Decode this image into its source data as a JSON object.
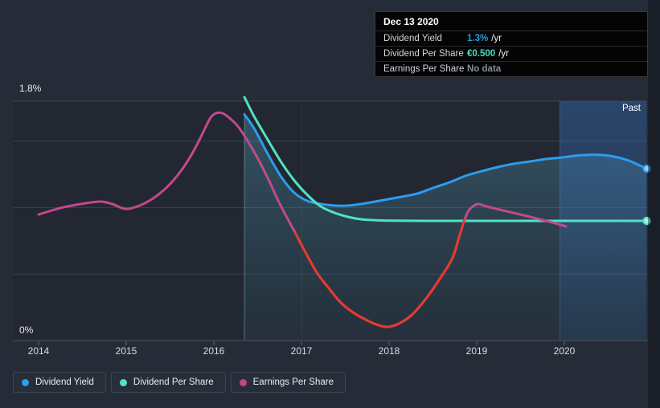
{
  "tooltip": {
    "date": "Dec 13 2020",
    "rows": [
      {
        "label": "Dividend Yield",
        "value": "1.3%",
        "suffix": "/yr",
        "value_color": "#1f9cf0"
      },
      {
        "label": "Dividend Per Share",
        "value": "€0.500",
        "suffix": "/yr",
        "value_color": "#45e0c0"
      },
      {
        "label": "Earnings Per Share",
        "value": "No data",
        "suffix": "",
        "value_color": "#878d96"
      }
    ]
  },
  "legend": {
    "items": [
      {
        "label": "Dividend Yield",
        "color": "#2d9cee"
      },
      {
        "label": "Dividend Per Share",
        "color": "#4fe3c5"
      },
      {
        "label": "Earnings Per Share",
        "color": "#c9418c"
      }
    ]
  },
  "chart_data": {
    "type": "line",
    "title": "",
    "x_tick_labels": [
      "2014",
      "2015",
      "2016",
      "2017",
      "2018",
      "2019",
      "2020"
    ],
    "x_ticks": [
      2014,
      2015,
      2016,
      2017,
      2018,
      2019,
      2020
    ],
    "x_range": [
      2013.7,
      2020.94
    ],
    "y_axis": {
      "top_label": "1.8%",
      "bottom_label": "0%",
      "min": 0,
      "max": 1.8,
      "gridline_values": [
        0.5,
        1.0,
        1.5,
        1.8
      ],
      "minor_vertical_ticks": [
        2017
      ]
    },
    "past_region": {
      "label": "Past",
      "start": 2019.95,
      "end": 2020.94
    },
    "series": [
      {
        "name": "Dividend Yield",
        "color": "#2d9cee",
        "marker_fill": "#8ecdf7",
        "area_fill": true,
        "end_marker": true,
        "points": [
          [
            2016.35,
            1.7
          ],
          [
            2016.46,
            1.595
          ],
          [
            2016.61,
            1.41
          ],
          [
            2016.77,
            1.23
          ],
          [
            2016.92,
            1.11
          ],
          [
            2017.07,
            1.05
          ],
          [
            2017.22,
            1.027
          ],
          [
            2017.38,
            1.015
          ],
          [
            2017.53,
            1.015
          ],
          [
            2017.68,
            1.027
          ],
          [
            2017.84,
            1.045
          ],
          [
            2017.99,
            1.063
          ],
          [
            2018.14,
            1.081
          ],
          [
            2018.32,
            1.105
          ],
          [
            2018.51,
            1.15
          ],
          [
            2018.69,
            1.19
          ],
          [
            2018.87,
            1.238
          ],
          [
            2019.06,
            1.274
          ],
          [
            2019.24,
            1.305
          ],
          [
            2019.42,
            1.329
          ],
          [
            2019.61,
            1.347
          ],
          [
            2019.79,
            1.365
          ],
          [
            2019.97,
            1.377
          ],
          [
            2020.16,
            1.392
          ],
          [
            2020.34,
            1.398
          ],
          [
            2020.52,
            1.389
          ],
          [
            2020.71,
            1.359
          ],
          [
            2020.84,
            1.323
          ],
          [
            2020.94,
            1.293
          ]
        ]
      },
      {
        "name": "Dividend Per Share",
        "color": "#4fe3c5",
        "marker_fill": "#aaf0e2",
        "area_fill": false,
        "end_marker": true,
        "points": [
          [
            2016.35,
            1.83
          ],
          [
            2016.46,
            1.685
          ],
          [
            2016.61,
            1.516
          ],
          [
            2016.77,
            1.341
          ],
          [
            2016.92,
            1.202
          ],
          [
            2017.07,
            1.093
          ],
          [
            2017.22,
            1.009
          ],
          [
            2017.38,
            0.96
          ],
          [
            2017.53,
            0.93
          ],
          [
            2017.68,
            0.912
          ],
          [
            2017.84,
            0.905
          ],
          [
            2018.05,
            0.901
          ],
          [
            2018.5,
            0.9
          ],
          [
            2019.0,
            0.9
          ],
          [
            2019.5,
            0.9
          ],
          [
            2020.0,
            0.9
          ],
          [
            2020.5,
            0.9
          ],
          [
            2020.94,
            0.9
          ]
        ]
      },
      {
        "name": "Earnings Per Share",
        "color": "#c2498c",
        "area_fill": false,
        "end_marker": false,
        "segments": [
          {
            "from": 2016.93,
            "to": 2018.86,
            "color": "#e63a2e"
          }
        ],
        "points": [
          [
            2014.0,
            0.948
          ],
          [
            2014.25,
            0.997
          ],
          [
            2014.48,
            1.027
          ],
          [
            2014.7,
            1.045
          ],
          [
            2014.84,
            1.027
          ],
          [
            2014.98,
            0.991
          ],
          [
            2015.1,
            1.003
          ],
          [
            2015.23,
            1.039
          ],
          [
            2015.37,
            1.099
          ],
          [
            2015.51,
            1.184
          ],
          [
            2015.65,
            1.299
          ],
          [
            2015.78,
            1.438
          ],
          [
            2015.89,
            1.583
          ],
          [
            2015.96,
            1.673
          ],
          [
            2016.02,
            1.709
          ],
          [
            2016.1,
            1.709
          ],
          [
            2016.19,
            1.667
          ],
          [
            2016.28,
            1.607
          ],
          [
            2016.4,
            1.486
          ],
          [
            2016.51,
            1.359
          ],
          [
            2016.63,
            1.202
          ],
          [
            2016.74,
            1.045
          ],
          [
            2016.84,
            0.918
          ],
          [
            2016.93,
            0.809
          ],
          [
            2017.06,
            0.646
          ],
          [
            2017.18,
            0.507
          ],
          [
            2017.32,
            0.387
          ],
          [
            2017.45,
            0.284
          ],
          [
            2017.59,
            0.211
          ],
          [
            2017.75,
            0.151
          ],
          [
            2017.88,
            0.115
          ],
          [
            2017.99,
            0.103
          ],
          [
            2018.11,
            0.127
          ],
          [
            2018.26,
            0.193
          ],
          [
            2018.42,
            0.314
          ],
          [
            2018.58,
            0.465
          ],
          [
            2018.72,
            0.616
          ],
          [
            2018.8,
            0.779
          ],
          [
            2018.86,
            0.906
          ],
          [
            2018.91,
            0.979
          ],
          [
            2018.97,
            1.015
          ],
          [
            2019.02,
            1.027
          ],
          [
            2019.11,
            1.009
          ],
          [
            2019.26,
            0.985
          ],
          [
            2019.42,
            0.96
          ],
          [
            2019.61,
            0.93
          ],
          [
            2019.79,
            0.9
          ],
          [
            2019.93,
            0.876
          ],
          [
            2020.02,
            0.858
          ]
        ]
      }
    ]
  }
}
